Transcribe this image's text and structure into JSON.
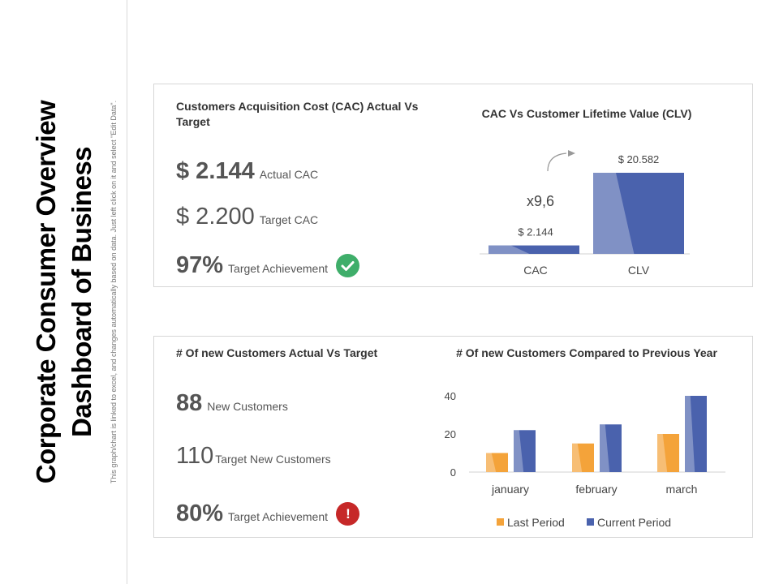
{
  "sidebar": {
    "title_line1": "Corporate Consumer Overview",
    "title_line2": "Dashboard of Business",
    "note": "This graph/chart is linked to excel, and changes automatically based on data. Just left click on it and select \"Edit Data\"."
  },
  "cac_panel": {
    "title_line1": "Customers Acquisition Cost (CAC) Actual Vs",
    "title_line2": "Target",
    "actual_value": "$ 2.144",
    "actual_label": "Actual CAC",
    "target_value": "$ 2.200",
    "target_label": "Target CAC",
    "achievement_value": "97%",
    "achievement_label": "Target Achievement",
    "status_icon": "check-icon",
    "status_color": "#3fae6a"
  },
  "customers_panel": {
    "title": "# Of new Customers Actual Vs Target",
    "new_value": "88",
    "new_label": "New Customers",
    "target_value": "110",
    "target_label": "Target New Customers",
    "achievement_value": "80%",
    "achievement_label": "Target Achievement",
    "status_icon": "alert-icon",
    "status_symbol": "!",
    "status_color": "#c62828"
  },
  "chart_data": [
    {
      "type": "bar",
      "title": "CAC Vs Customer Lifetime Value (CLV)",
      "categories": [
        "CAC",
        "CLV"
      ],
      "values": [
        2.144,
        20.582
      ],
      "data_labels": [
        "$ 2.144",
        "$ 20.582"
      ],
      "annotation": "x9,6",
      "color": "#4a62ad",
      "grid": false
    },
    {
      "type": "bar",
      "title": "# Of new Customers Compared to Previous Year",
      "categories": [
        "january",
        "february",
        "march"
      ],
      "series": [
        {
          "name": "Last Period",
          "values": [
            10,
            15,
            20
          ],
          "color": "#f4a33a"
        },
        {
          "name": "Current Period",
          "values": [
            22,
            25,
            40
          ],
          "color": "#4a62ad"
        }
      ],
      "yticks": [
        "0",
        "20",
        "40"
      ],
      "ylim": [
        0,
        40
      ],
      "legend": "bottom",
      "grid": false
    }
  ]
}
